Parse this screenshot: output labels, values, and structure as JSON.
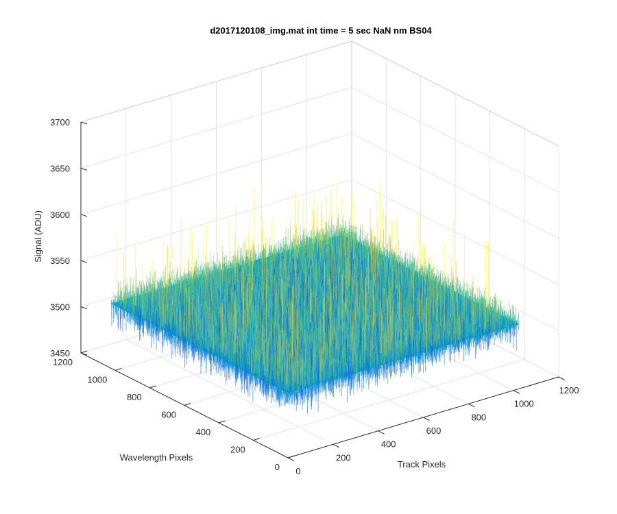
{
  "chart_data": {
    "type": "surface",
    "title": "d2017120108_img.mat int time = 5 sec  NaN nm BS04",
    "xlabel": "Track Pixels",
    "ylabel": "Wavelength Pixels",
    "zlabel": "Signal (ADU)",
    "xlim": [
      0,
      1200
    ],
    "ylim": [
      0,
      1200
    ],
    "zlim": [
      3450,
      3700
    ],
    "xticks": [
      0,
      200,
      400,
      600,
      800,
      1000,
      1200
    ],
    "yticks": [
      0,
      200,
      400,
      600,
      800,
      1000,
      1200
    ],
    "zticks": [
      3450,
      3500,
      3550,
      3600,
      3650,
      3700
    ],
    "grid": true,
    "surface": {
      "x_extent": [
        0,
        1024
      ],
      "y_extent": [
        0,
        1024
      ],
      "mean": 3520,
      "std": 10,
      "min": 3490,
      "max": 3600,
      "colormap": "parula"
    }
  }
}
